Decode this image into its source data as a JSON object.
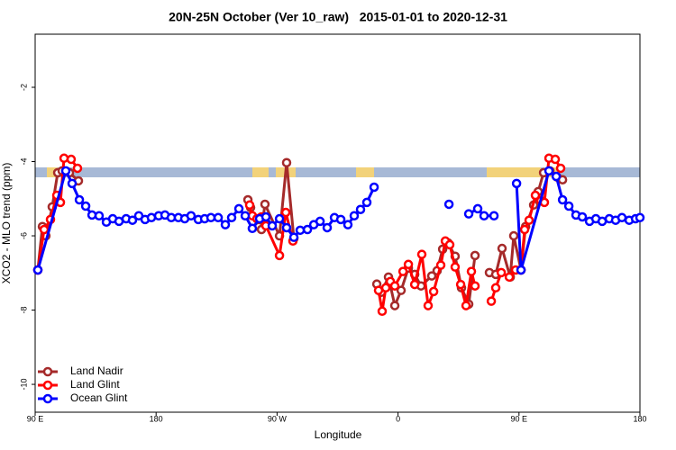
{
  "chart_data": {
    "type": "line",
    "title": "20N-25N October (Ver 10_raw)   2015-01-01 to 2020-12-31",
    "x_label": "Longitude",
    "y_label": "XCO2 - MLO trend (ppm)",
    "xlim": [
      90,
      540
    ],
    "xticks": [
      {
        "value": 90,
        "label": "90 E"
      },
      {
        "value": 180,
        "label": "180"
      },
      {
        "value": 270,
        "label": "90 W"
      },
      {
        "value": 360,
        "label": "0"
      },
      {
        "value": 450,
        "label": "90 E"
      },
      {
        "value": 540,
        "label": "180"
      }
    ],
    "ylim": [
      -10.75,
      -0.57
    ],
    "yticks": [
      -10,
      -8,
      -6,
      -4,
      -2
    ],
    "legend": "lower left",
    "series": [
      {
        "name": "Land Nadir",
        "color": "#a52a2a",
        "x": [
          92.0,
          95.4,
          98.0,
          102.7,
          106.8,
          110.1,
          115.5,
          122.2,
          null,
          248.3,
          250.3,
          256.3,
          258.4,
          261.0,
          271.8,
          277.1,
          282.5,
          null,
          344.2,
          347.6,
          352.9,
          357.6,
          362.3,
          367.7,
          372.4,
          377.1,
          385.1,
          389.1,
          393.2,
          397.2,
          402.5,
          407.2,
          412.6,
          417.3,
          null,
          428.0,
          432.7,
          437.4,
          443.5,
          446.1,
          451.5,
          454.9,
          460.9,
          464.3,
          468.3,
          473.0,
          478.4,
          482.4
        ],
        "values": [
          -6.92,
          -5.75,
          -6.0,
          -5.22,
          -4.3,
          -4.25,
          -4.3,
          -4.52,
          null,
          -5.03,
          -5.24,
          -5.75,
          -5.83,
          -5.15,
          -6.0,
          -4.03,
          -6.07,
          null,
          -7.3,
          -7.52,
          -7.11,
          -7.88,
          -7.47,
          -6.87,
          -7.04,
          -7.35,
          -7.08,
          -6.94,
          -6.36,
          -6.19,
          -6.55,
          -7.4,
          -7.84,
          -6.53,
          null,
          -6.99,
          -7.04,
          -6.34,
          -7.11,
          -6.0,
          -6.92,
          -5.75,
          -5.17,
          -4.81,
          -4.3,
          -4.25,
          -4.42,
          -4.49
        ]
      },
      {
        "name": "Land Glint",
        "color": "#ff0000",
        "x": [
          92.0,
          96.7,
          101.4,
          106.1,
          108.8,
          111.5,
          116.8,
          121.5,
          null,
          249.6,
          251.6,
          255.0,
          258.4,
          261.7,
          271.8,
          276.5,
          281.8,
          null,
          345.5,
          348.2,
          350.9,
          354.3,
          357.6,
          363.7,
          367.7,
          372.4,
          377.7,
          382.4,
          386.5,
          391.8,
          395.2,
          398.5,
          402.5,
          406.6,
          410.6,
          414.6,
          417.3,
          null,
          429.4,
          432.7,
          436.8,
          442.8,
          447.5,
          451.5,
          454.2,
          457.5,
          462.2,
          466.3,
          468.9,
          472.3,
          477.0,
          481.0
        ],
        "values": [
          -6.92,
          -5.83,
          -5.56,
          -4.91,
          -5.1,
          -3.91,
          -3.94,
          -4.18,
          null,
          -5.17,
          -5.46,
          -5.54,
          -5.49,
          -5.73,
          -6.53,
          -5.37,
          -6.14,
          null,
          -7.47,
          -8.03,
          -7.4,
          -7.23,
          -7.35,
          -6.96,
          -6.77,
          -7.31,
          -6.5,
          -7.88,
          -7.5,
          -6.79,
          -6.14,
          -6.24,
          -6.84,
          -7.31,
          -7.88,
          -6.96,
          -7.35,
          null,
          -7.76,
          -7.4,
          -6.99,
          -7.11,
          -6.92,
          -6.92,
          -5.83,
          -5.58,
          -4.91,
          -5.05,
          -5.1,
          -3.91,
          -3.94,
          -4.18
        ]
      },
      {
        "name": "Ocean Glint",
        "color": "#0000ff",
        "x": [
          92.0,
          112.8,
          117.5,
          122.9,
          127.6,
          132.3,
          137.6,
          143.0,
          147.7,
          152.4,
          157.7,
          162.4,
          167.1,
          171.8,
          176.5,
          181.9,
          186.6,
          191.3,
          196.6,
          201.3,
          206.0,
          211.4,
          216.1,
          220.8,
          226.2,
          231.5,
          236.2,
          241.6,
          246.3,
          251.6,
          257.0,
          261.7,
          266.4,
          271.8,
          277.1,
          282.5,
          287.2,
          292.6,
          297.3,
          302.0,
          307.3,
          312.7,
          317.4,
          322.7,
          327.4,
          332.1,
          336.8,
          342.2,
          null,
          397.9,
          null,
          412.6,
          419.3,
          424.0,
          431.4,
          null,
          448.2,
          451.5,
          472.3,
          477.7,
          482.4,
          487.1,
          492.4,
          497.1,
          502.5,
          507.2,
          511.9,
          517.2,
          521.9,
          526.6,
          532.0,
          536.7,
          540.0
        ],
        "values": [
          -6.92,
          -4.25,
          -4.59,
          -5.03,
          -5.2,
          -5.44,
          -5.46,
          -5.63,
          -5.54,
          -5.61,
          -5.54,
          -5.58,
          -5.46,
          -5.56,
          -5.51,
          -5.46,
          -5.44,
          -5.51,
          -5.51,
          -5.54,
          -5.46,
          -5.56,
          -5.54,
          -5.51,
          -5.51,
          -5.7,
          -5.51,
          -5.27,
          -5.46,
          -5.8,
          -5.54,
          -5.49,
          -5.73,
          -5.54,
          -5.78,
          -6.04,
          -5.85,
          -5.83,
          -5.7,
          -5.61,
          -5.78,
          -5.51,
          -5.56,
          -5.7,
          -5.46,
          -5.29,
          -5.1,
          -4.69,
          null,
          -5.15,
          null,
          -5.41,
          -5.27,
          -5.46,
          -5.46,
          null,
          -4.59,
          -6.92,
          -4.25,
          -4.4,
          -5.03,
          -5.2,
          -5.44,
          -5.49,
          -5.61,
          -5.54,
          -5.61,
          -5.54,
          -5.58,
          -5.51,
          -5.58,
          -5.54,
          -5.51
        ]
      }
    ]
  }
}
